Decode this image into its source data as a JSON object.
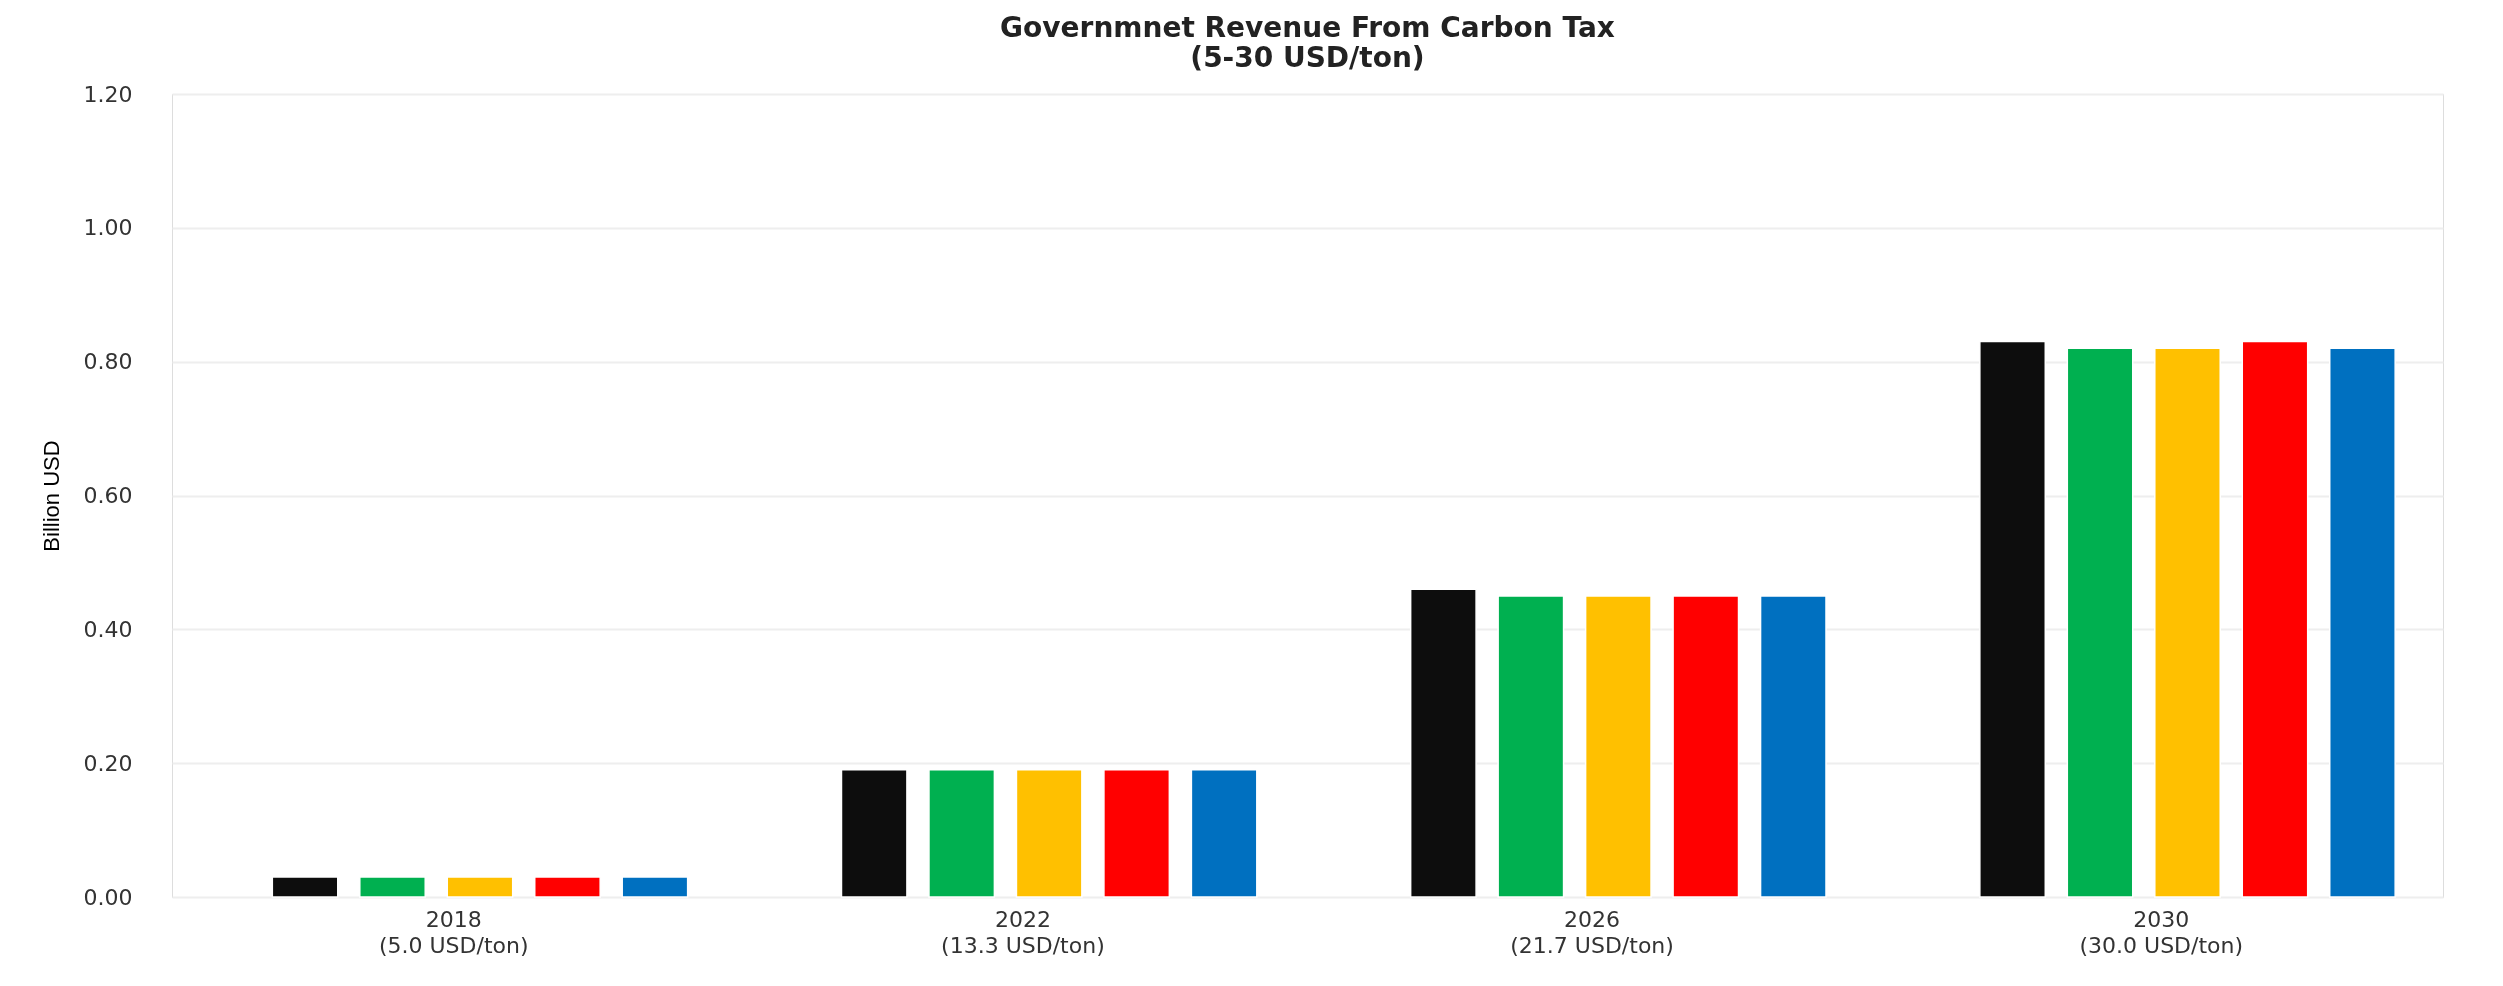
{
  "chart_data": {
    "type": "bar",
    "title": "Governmnet Revenue From Carbon Tax\n(5-30 USD/ton)",
    "ylabel": "Billion USD",
    "categories": [
      "2018\n(5.0 USD/ton)",
      "2022\n(13.3 USD/ton)",
      "2026\n(21.7 USD/ton)",
      "2030\n(30.0 USD/ton)"
    ],
    "series": [
      {
        "color": "#0d0d0d",
        "values": [
          0.03,
          0.19,
          0.46,
          0.83
        ]
      },
      {
        "color": "#00b050",
        "values": [
          0.03,
          0.19,
          0.45,
          0.82
        ]
      },
      {
        "color": "#ffc000",
        "values": [
          0.03,
          0.19,
          0.45,
          0.82
        ]
      },
      {
        "color": "#ff0000",
        "values": [
          0.03,
          0.19,
          0.45,
          0.83
        ]
      },
      {
        "color": "#0070c0",
        "values": [
          0.03,
          0.19,
          0.45,
          0.82
        ]
      }
    ],
    "ylim": [
      0,
      1.2
    ],
    "yticks": [
      {
        "value": 0,
        "label": "0.00"
      },
      {
        "value": 0.2,
        "label": "0.20"
      },
      {
        "value": 0.4,
        "label": "0.40"
      },
      {
        "value": 0.6,
        "label": "0.60"
      },
      {
        "value": 0.8,
        "label": "0.80"
      },
      {
        "value": 1.0,
        "label": "1.00"
      },
      {
        "value": 1.2,
        "label": "1.20"
      }
    ],
    "grid": "y",
    "legend": false
  }
}
